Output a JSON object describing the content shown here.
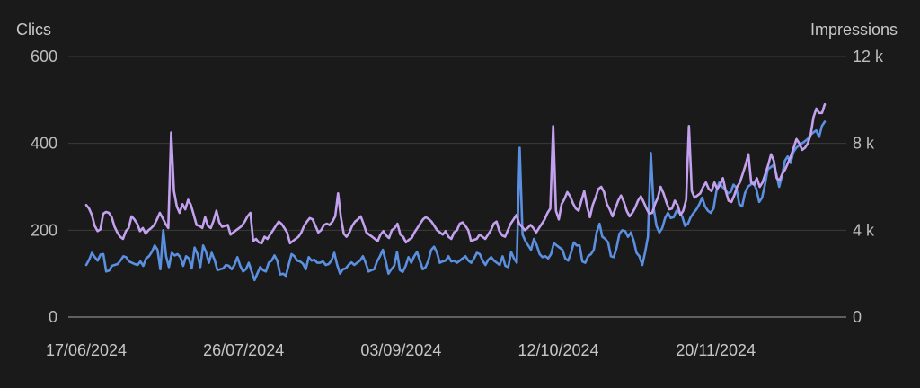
{
  "chart_data": {
    "type": "line",
    "left_axis_title": "Clics",
    "right_axis_title": "Impressions",
    "left_ylim": [
      0,
      600
    ],
    "right_ylim": [
      0,
      12000
    ],
    "left_ticks": [
      "0",
      "200",
      "400",
      "600"
    ],
    "right_ticks": [
      "0",
      "4 k",
      "8 k",
      "12 k"
    ],
    "x_tick_labels": [
      "17/06/2024",
      "26/07/2024",
      "03/09/2024",
      "12/10/2024",
      "20/11/2024"
    ],
    "x_start": "2024-06-17",
    "x_end": "2024-12-17",
    "grid": true,
    "series": [
      {
        "color": "#5b8fe0",
        "axis": "left",
        "values": [
          120,
          132,
          148,
          138,
          130,
          144,
          145,
          105,
          107,
          118,
          120,
          122,
          130,
          140,
          138,
          128,
          125,
          122,
          120,
          128,
          118,
          135,
          140,
          150,
          165,
          155,
          110,
          200,
          140,
          115,
          148,
          142,
          145,
          138,
          118,
          140,
          135,
          112,
          160,
          145,
          115,
          165,
          150,
          125,
          148,
          132,
          108,
          110,
          112,
          120,
          118,
          110,
          120,
          138,
          118,
          105,
          110,
          125,
          105,
          85,
          100,
          115,
          108,
          105,
          125,
          130,
          142,
          130,
          98,
          100,
          95,
          120,
          145,
          140,
          130,
          128,
          123,
          110,
          138,
          130,
          132,
          125,
          125,
          128,
          120,
          122,
          130,
          148,
          120,
          100,
          110,
          112,
          120,
          126,
          120,
          125,
          130,
          140,
          125,
          105,
          108,
          110,
          128,
          140,
          155,
          130,
          100,
          110,
          118,
          150,
          108,
          104,
          118,
          138,
          125,
          140,
          150,
          130,
          110,
          115,
          130,
          155,
          162,
          148,
          125,
          128,
          130,
          140,
          128,
          130,
          125,
          130,
          135,
          140,
          130,
          125,
          135,
          148,
          145,
          130,
          120,
          132,
          138,
          130,
          125,
          120,
          140,
          118,
          115,
          150,
          135,
          125,
          390,
          190,
          175,
          165,
          155,
          180,
          165,
          145,
          138,
          140,
          135,
          145,
          170,
          165,
          160,
          155,
          135,
          130,
          148,
          172,
          165,
          165,
          128,
          125,
          140,
          145,
          155,
          195,
          215,
          185,
          180,
          172,
          140,
          138,
          160,
          192,
          200,
          198,
          185,
          195,
          175,
          148,
          140,
          120,
          150,
          185,
          378,
          250,
          210,
          195,
          205,
          228,
          240,
          228,
          230,
          245,
          240,
          232,
          210,
          215,
          230,
          240,
          248,
          260,
          275,
          255,
          245,
          240,
          250,
          290,
          310,
          300,
          295,
          285,
          288,
          305,
          298,
          260,
          255,
          285,
          300,
          305,
          310,
          295,
          265,
          275,
          305,
          340,
          345,
          350,
          330,
          300,
          325,
          360,
          370,
          355,
          380,
          390,
          395,
          400,
          405,
          410,
          420,
          425,
          430,
          415,
          440,
          450
        ]
      },
      {
        "color": "#c3a1ef",
        "axis": "left",
        "values": [
          258,
          250,
          235,
          210,
          198,
          202,
          238,
          242,
          240,
          230,
          208,
          195,
          185,
          180,
          198,
          205,
          232,
          225,
          215,
          198,
          205,
          192,
          200,
          205,
          212,
          225,
          240,
          228,
          215,
          205,
          425,
          290,
          255,
          240,
          260,
          248,
          270,
          258,
          235,
          212,
          210,
          205,
          230,
          210,
          205,
          222,
          245,
          218,
          208,
          210,
          212,
          190,
          195,
          200,
          205,
          210,
          220,
          232,
          240,
          175,
          180,
          172,
          170,
          185,
          180,
          190,
          200,
          210,
          220,
          215,
          205,
          195,
          170,
          175,
          180,
          185,
          195,
          210,
          220,
          228,
          225,
          210,
          195,
          200,
          212,
          215,
          212,
          220,
          232,
          285,
          230,
          192,
          185,
          195,
          210,
          220,
          225,
          232,
          215,
          195,
          190,
          185,
          180,
          175,
          190,
          198,
          188,
          182,
          200,
          205,
          215,
          190,
          185,
          172,
          178,
          182,
          195,
          205,
          215,
          225,
          230,
          226,
          220,
          210,
          200,
          195,
          190,
          198,
          185,
          180,
          195,
          200,
          215,
          218,
          210,
          200,
          175,
          178,
          180,
          190,
          185,
          180,
          190,
          200,
          215,
          220,
          198,
          188,
          185,
          200,
          215,
          225,
          235,
          215,
          208,
          200,
          205,
          212,
          205,
          195,
          205,
          215,
          225,
          240,
          250,
          440,
          245,
          225,
          260,
          272,
          288,
          278,
          262,
          250,
          245,
          268,
          290,
          255,
          230,
          258,
          275,
          295,
          300,
          288,
          260,
          248,
          232,
          250,
          268,
          280,
          265,
          245,
          232,
          240,
          252,
          268,
          278,
          265,
          250,
          238,
          240,
          260,
          275,
          300,
          285,
          265,
          248,
          250,
          268,
          258,
          235,
          245,
          270,
          440,
          290,
          275,
          280,
          285,
          300,
          310,
          295,
          290,
          310,
          295,
          305,
          320,
          290,
          268,
          265,
          280,
          300,
          310,
          330,
          350,
          375,
          310,
          305,
          320,
          300,
          310,
          330,
          350,
          375,
          360,
          320,
          315,
          330,
          340,
          355,
          370,
          390,
          410,
          400,
          385,
          390,
          400,
          420,
          460,
          480,
          470,
          470,
          490
        ]
      }
    ]
  }
}
